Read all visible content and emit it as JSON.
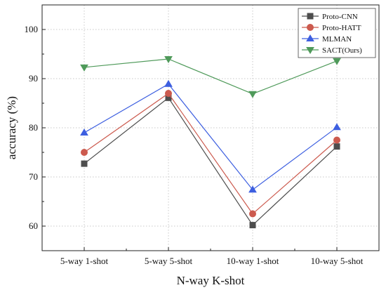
{
  "chart_data": {
    "type": "line",
    "categories": [
      "5-way 1-shot",
      "5-way 5-shot",
      "10-way 1-shot",
      "10-way 5-shot"
    ],
    "series": [
      {
        "name": "Proto-CNN",
        "values": [
          72.7,
          86.1,
          60.2,
          76.2
        ],
        "color": "#4d4d4d",
        "marker": "square"
      },
      {
        "name": "Proto-HATT",
        "values": [
          75.0,
          87.0,
          62.5,
          77.5
        ],
        "color": "#cc5a4e",
        "marker": "circle"
      },
      {
        "name": "MLMAN",
        "values": [
          79.0,
          88.9,
          67.4,
          80.1
        ],
        "color": "#3d5fe0",
        "marker": "triangle-up"
      },
      {
        "name": "SACT(Ours)",
        "values": [
          92.3,
          94.0,
          86.9,
          93.6
        ],
        "color": "#4f9a5a",
        "marker": "triangle-down"
      }
    ],
    "title": "",
    "xlabel": "N-way K-shot",
    "ylabel": "accuracy (%)",
    "ylim": [
      55,
      105
    ],
    "yticks": [
      60,
      70,
      80,
      90,
      100
    ],
    "grid": true,
    "legend_position": "top-right"
  }
}
